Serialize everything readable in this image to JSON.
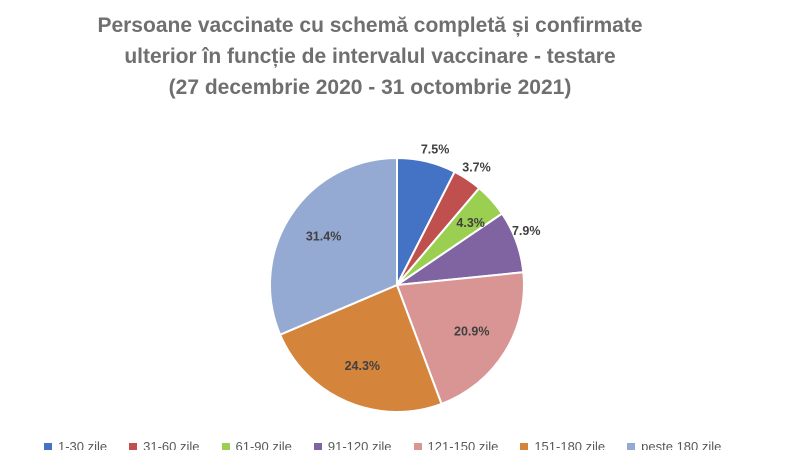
{
  "chart_data": {
    "type": "pie",
    "title_lines": [
      "Persoane vaccinate cu schemă completă și confirmate",
      "ulterior în funcție de intervalul vaccinare - testare",
      "(27 decembrie 2020 - 31 octombrie 2021)"
    ],
    "categories": [
      "1-30 zile",
      "31-60 zile",
      "61-90 zile",
      "91-120 zile",
      "121-150 zile",
      "151-180 zile",
      "peste 180 zile"
    ],
    "values": [
      7.5,
      3.7,
      4.3,
      7.9,
      20.9,
      24.3,
      31.4
    ],
    "data_labels": [
      "7.5%",
      "3.7%",
      "4.3%",
      "7.9%",
      "20.9%",
      "24.3%",
      "31.4%"
    ],
    "colors": [
      "#4472c4",
      "#c0504d",
      "#9bcf52",
      "#8064a2",
      "#d99594",
      "#d5853b",
      "#94aad2"
    ],
    "start_angle": "12 o'clock",
    "direction": "clockwise",
    "legend_position": "bottom"
  }
}
